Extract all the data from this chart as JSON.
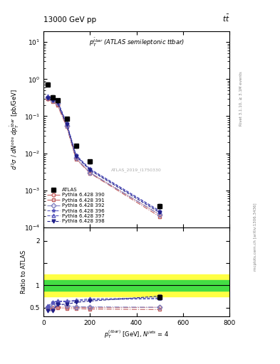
{
  "title_top": "13000 GeV pp",
  "title_top_right": "$t\\bar{t}$",
  "plot_label": "$p_T^{\\bar{t}bar}$ (ATLAS semileptonic ttbar)",
  "watermark": "ATLAS_2019_I1750330",
  "right_label_top": "Rivet 3.1.10, ≥ 3.1M events",
  "right_label_bottom": "mcplots.cern.ch [arXiv:1306.3436]",
  "xlabel": "$p^{(tbar)}_T$ [GeV], $N^{jets}$ = 4",
  "ylabel_main": "$d^2\\sigma\\ /\\ dN^{obs}\\ dp^{\\bar{t}bar}_T$ [pb/GeV]",
  "ylabel_ratio": "Ratio to ATLAS",
  "xlim": [
    0,
    800
  ],
  "ylim_ratio": [
    0.3,
    2.3
  ],
  "x_data": [
    20,
    40,
    60,
    100,
    140,
    200,
    500
  ],
  "atlas_y": [
    0.72,
    0.32,
    0.27,
    0.085,
    0.016,
    0.006,
    0.00038
  ],
  "atlas_yerr_lo": [
    0.08,
    0.04,
    0.025,
    0.009,
    0.0018,
    0.0007,
    5e-05
  ],
  "atlas_yerr_hi": [
    0.08,
    0.04,
    0.025,
    0.009,
    0.0018,
    0.0007,
    5e-05
  ],
  "band_yellow_lo": 0.75,
  "band_yellow_hi": 1.25,
  "band_green_lo": 0.88,
  "band_green_hi": 1.12,
  "band_yellow_lo_first": 0.82,
  "band_yellow_hi_first": 1.18,
  "band_green_lo_first": 0.9,
  "band_green_hi_first": 1.1,
  "band_first_xmax": 55,
  "mc_series": [
    {
      "label": "Pythia 6.428 390",
      "color": "#c86464",
      "linestyle": "-.",
      "marker": "o",
      "markerfacecolor": "none",
      "y": [
        0.3,
        0.255,
        0.21,
        0.054,
        0.0072,
        0.003,
        0.00022
      ],
      "ratio": [
        0.52,
        0.5,
        0.52,
        0.51,
        0.51,
        0.5,
        0.51
      ]
    },
    {
      "label": "Pythia 6.428 391",
      "color": "#c06060",
      "linestyle": "-.",
      "marker": "s",
      "markerfacecolor": "none",
      "y": [
        0.29,
        0.245,
        0.2,
        0.052,
        0.007,
        0.0029,
        0.000195
      ],
      "ratio": [
        0.48,
        0.47,
        0.5,
        0.48,
        0.48,
        0.47,
        0.46
      ]
    },
    {
      "label": "Pythia 6.428 392",
      "color": "#8080c0",
      "linestyle": "-.",
      "marker": "D",
      "markerfacecolor": "none",
      "y": [
        0.315,
        0.275,
        0.225,
        0.056,
        0.0075,
        0.003,
        0.00022
      ],
      "ratio": [
        0.52,
        0.55,
        0.59,
        0.55,
        0.52,
        0.52,
        0.51
      ]
    },
    {
      "label": "Pythia 6.428 396",
      "color": "#5555bb",
      "linestyle": "--",
      "marker": "*",
      "markerfacecolor": "none",
      "y": [
        0.335,
        0.3,
        0.255,
        0.064,
        0.0088,
        0.0037,
        0.00027
      ],
      "ratio": [
        0.53,
        0.62,
        0.64,
        0.63,
        0.65,
        0.68,
        0.7
      ]
    },
    {
      "label": "Pythia 6.428 397",
      "color": "#5555bb",
      "linestyle": "--",
      "marker": "^",
      "markerfacecolor": "none",
      "y": [
        0.345,
        0.31,
        0.265,
        0.065,
        0.009,
        0.0038,
        0.00028
      ],
      "ratio": [
        0.54,
        0.63,
        0.65,
        0.65,
        0.67,
        0.7,
        0.72
      ]
    },
    {
      "label": "Pythia 6.428 398",
      "color": "#20208a",
      "linestyle": "--",
      "marker": "v",
      "markerfacecolor": "#20208a",
      "y": [
        0.305,
        0.265,
        0.235,
        0.06,
        0.0084,
        0.0035,
        0.00025
      ],
      "ratio": [
        0.44,
        0.43,
        0.57,
        0.58,
        0.62,
        0.65,
        0.76
      ]
    }
  ],
  "background_color": "#ffffff"
}
